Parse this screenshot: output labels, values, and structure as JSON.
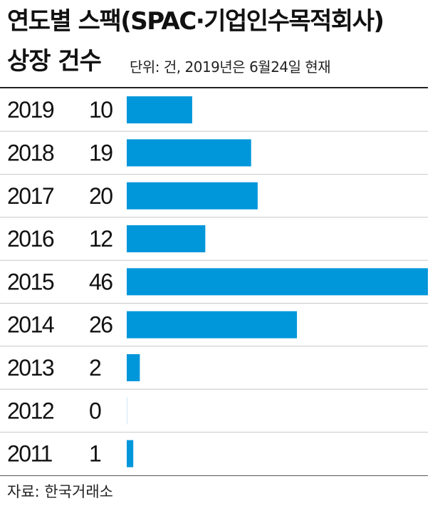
{
  "header": {
    "title_line1": "연도별 스팩(SPAC·기업인수목적회사)",
    "title_line2": "상장 건수",
    "unit_note": "단위: 건, 2019년은 6월24일 현재"
  },
  "footer": {
    "source": "자료: 한국거래소"
  },
  "colors": {
    "bar": "#0096DA",
    "row_divider": "#c8c8c8",
    "rule": "#222222"
  },
  "chart_data": {
    "type": "bar",
    "orientation": "horizontal",
    "title": "연도별 스팩(SPAC·기업인수목적회사) 상장 건수",
    "unit": "건",
    "categories": [
      "2019",
      "2018",
      "2017",
      "2016",
      "2015",
      "2014",
      "2013",
      "2012",
      "2011"
    ],
    "values": [
      10,
      19,
      20,
      12,
      46,
      26,
      2,
      0,
      1
    ],
    "xlim": [
      0,
      46
    ],
    "grid": false,
    "legend": "none"
  }
}
